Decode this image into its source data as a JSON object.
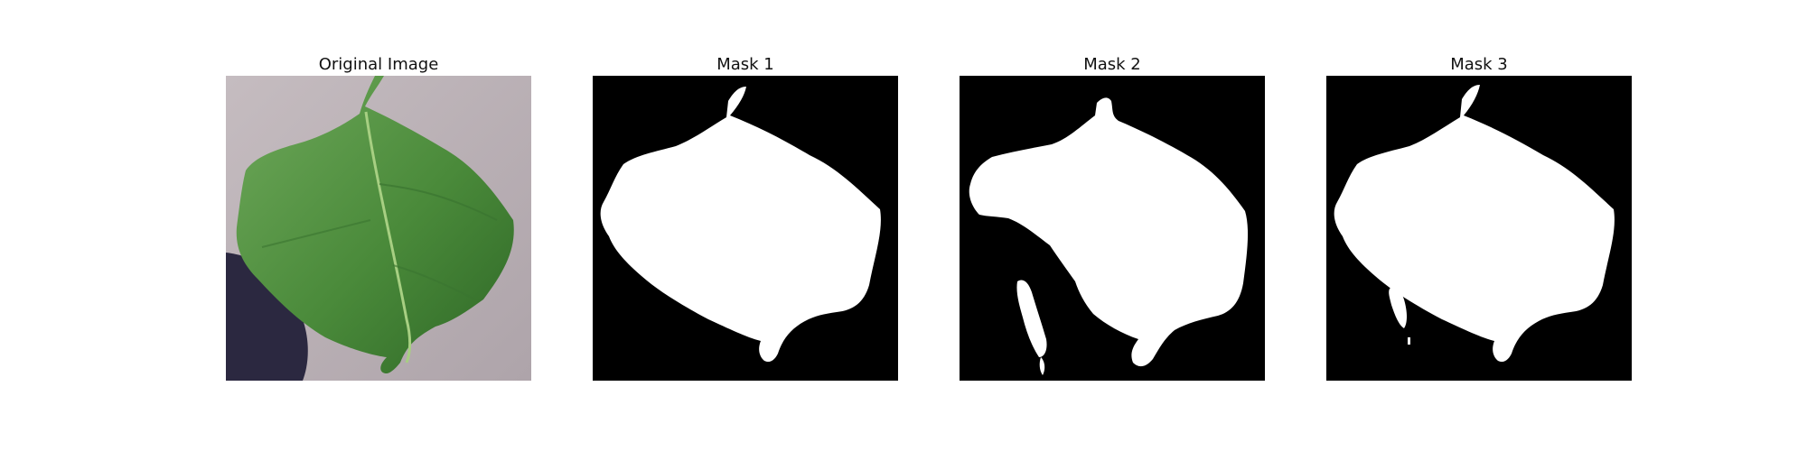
{
  "figure": {
    "panels": [
      {
        "title": "Original Image"
      },
      {
        "title": "Mask 1"
      },
      {
        "title": "Mask 2"
      },
      {
        "title": "Mask 3"
      }
    ]
  },
  "colors": {
    "background": "#b8aeb2",
    "leaf_dark": "#2f6a26",
    "leaf_mid": "#4f8d3b",
    "leaf_light": "#7fb463",
    "shadow": "#2b2840",
    "mask_bg": "#000000",
    "mask_fg": "#ffffff"
  }
}
